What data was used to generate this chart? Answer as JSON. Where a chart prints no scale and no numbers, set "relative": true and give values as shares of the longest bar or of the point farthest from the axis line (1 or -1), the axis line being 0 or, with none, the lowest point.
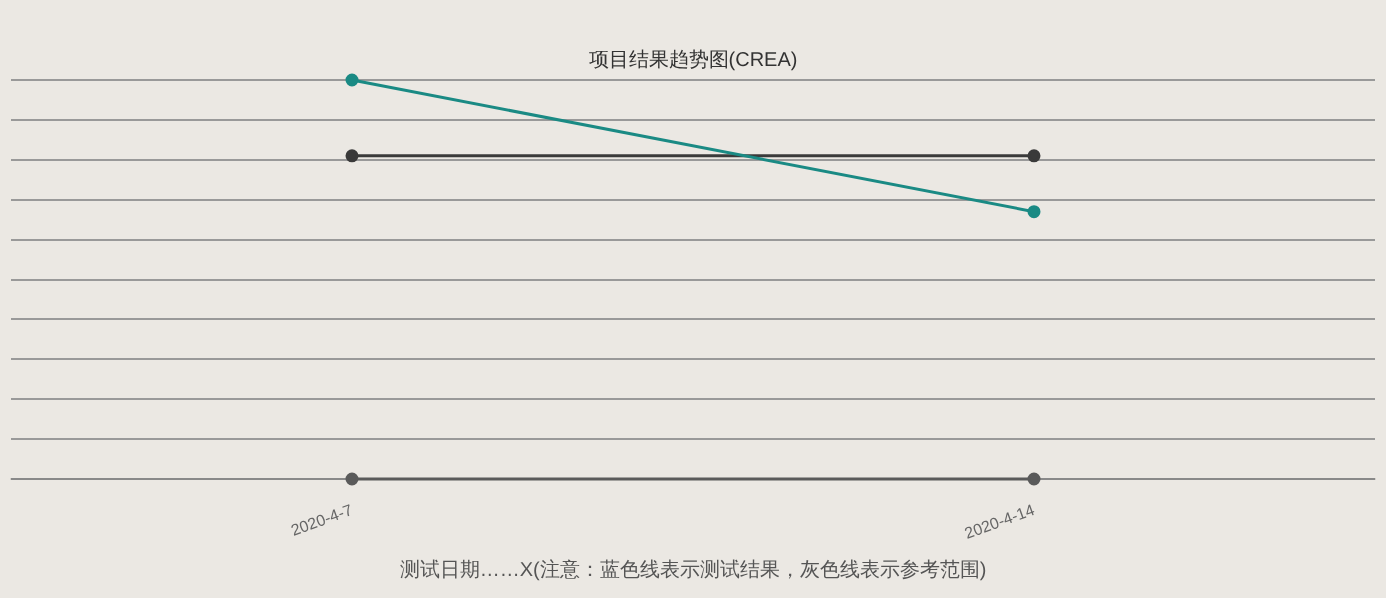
{
  "chart_data": {
    "type": "line",
    "title": "项目结果趋势图(CREA)",
    "xlabel": "测试日期……X(注意：蓝色线表示测试结果，灰色线表示参考范围)",
    "categories": [
      "2020-4-7",
      "2020-4-14"
    ],
    "relative": true,
    "grid": "y",
    "legend": false,
    "marker": "circle",
    "line_style": "solid",
    "series": [
      {
        "color": "#1a8a84",
        "values": [
          1,
          0.67
        ]
      },
      {
        "color": "#3a3a3a",
        "values": [
          0.81,
          0.81
        ]
      },
      {
        "color": "#5a5a5a",
        "values": [
          0,
          0
        ]
      }
    ]
  }
}
